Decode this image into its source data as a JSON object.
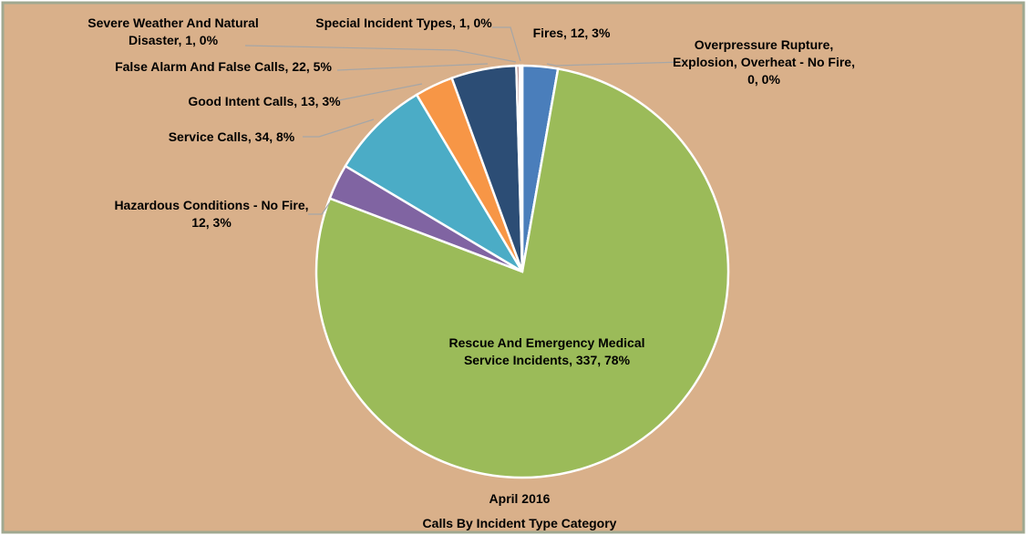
{
  "chart_data": {
    "type": "pie",
    "title": "April 2016",
    "subtitle": "Calls By Incident Type Category",
    "categories": [
      "Fires",
      "Overpressure Rupture, Explosion, Overheat - No Fire",
      "Rescue And Emergency Medical Service Incidents",
      "Hazardous Conditions - No Fire",
      "Service Calls",
      "Good Intent Calls",
      "False Alarm And False Calls",
      "Severe Weather And Natural Disaster",
      "Special Incident Types"
    ],
    "values": [
      12,
      0,
      337,
      12,
      34,
      13,
      22,
      1,
      1
    ],
    "value_labels": [
      "Fires, 12, 3%",
      "Overpressure Rupture, Explosion, Overheat - No Fire, 0, 0%",
      "Rescue And Emergency Medical Service Incidents, 337, 78%",
      "Hazardous Conditions - No Fire, 12, 3%",
      "Service Calls, 34, 8%",
      "Good Intent Calls, 13, 3%",
      "False Alarm And False Calls, 22, 5%",
      "Severe Weather And Natural Disaster, 1, 0%",
      "Special Incident Types, 1, 0%"
    ],
    "colors": [
      "#4a7ebb",
      "#c0504d",
      "#9bbb59",
      "#8064a2",
      "#4bacc6",
      "#f79646",
      "#2c4d75",
      "#772c2a",
      "#ffffff"
    ]
  }
}
